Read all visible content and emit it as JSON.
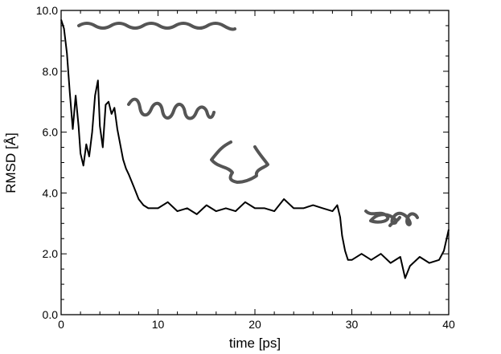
{
  "chart_data": {
    "type": "line",
    "xlabel": "time [ps]",
    "ylabel": "RMSD [Å]",
    "xlim": [
      0,
      40
    ],
    "ylim": [
      0,
      10
    ],
    "x_ticks": [
      "0",
      "10",
      "20",
      "30",
      "40"
    ],
    "y_ticks": [
      "0.0",
      "2.0",
      "4.0",
      "6.0",
      "8.0",
      "10.0"
    ],
    "grid": false,
    "legend": "none",
    "line_color": "#000000",
    "inset_color": "#555555",
    "series": [
      {
        "x": [
          0,
          0.3,
          0.6,
          0.9,
          1.2,
          1.5,
          1.8,
          2.0,
          2.3,
          2.6,
          2.9,
          3.2,
          3.5,
          3.8,
          4.0,
          4.3,
          4.6,
          4.9,
          5.2,
          5.5,
          5.8,
          6.1,
          6.4,
          6.7,
          7.0,
          7.5,
          8.0,
          8.5,
          9.0,
          10,
          11,
          12,
          13,
          14,
          15,
          16,
          17,
          18,
          19,
          20,
          21,
          22,
          23,
          24,
          25,
          26,
          27,
          28,
          28.5,
          28.8,
          29.0,
          29.3,
          29.6,
          30,
          31,
          32,
          33,
          34,
          35,
          35.5,
          36,
          37,
          38,
          39,
          39.5,
          40
        ],
        "y": [
          9.7,
          9.4,
          8.6,
          7.3,
          6.1,
          7.2,
          6.2,
          5.3,
          4.9,
          5.6,
          5.2,
          6.0,
          7.2,
          7.7,
          6.2,
          5.5,
          6.9,
          7.0,
          6.6,
          6.8,
          6.1,
          5.6,
          5.1,
          4.8,
          4.6,
          4.2,
          3.8,
          3.6,
          3.5,
          3.5,
          3.7,
          3.4,
          3.5,
          3.3,
          3.6,
          3.4,
          3.5,
          3.4,
          3.7,
          3.5,
          3.5,
          3.4,
          3.8,
          3.5,
          3.5,
          3.6,
          3.5,
          3.4,
          3.6,
          3.2,
          2.6,
          2.1,
          1.8,
          1.8,
          2.0,
          1.8,
          2.0,
          1.7,
          1.9,
          1.2,
          1.6,
          1.9,
          1.7,
          1.8,
          2.1,
          2.8
        ]
      }
    ]
  }
}
